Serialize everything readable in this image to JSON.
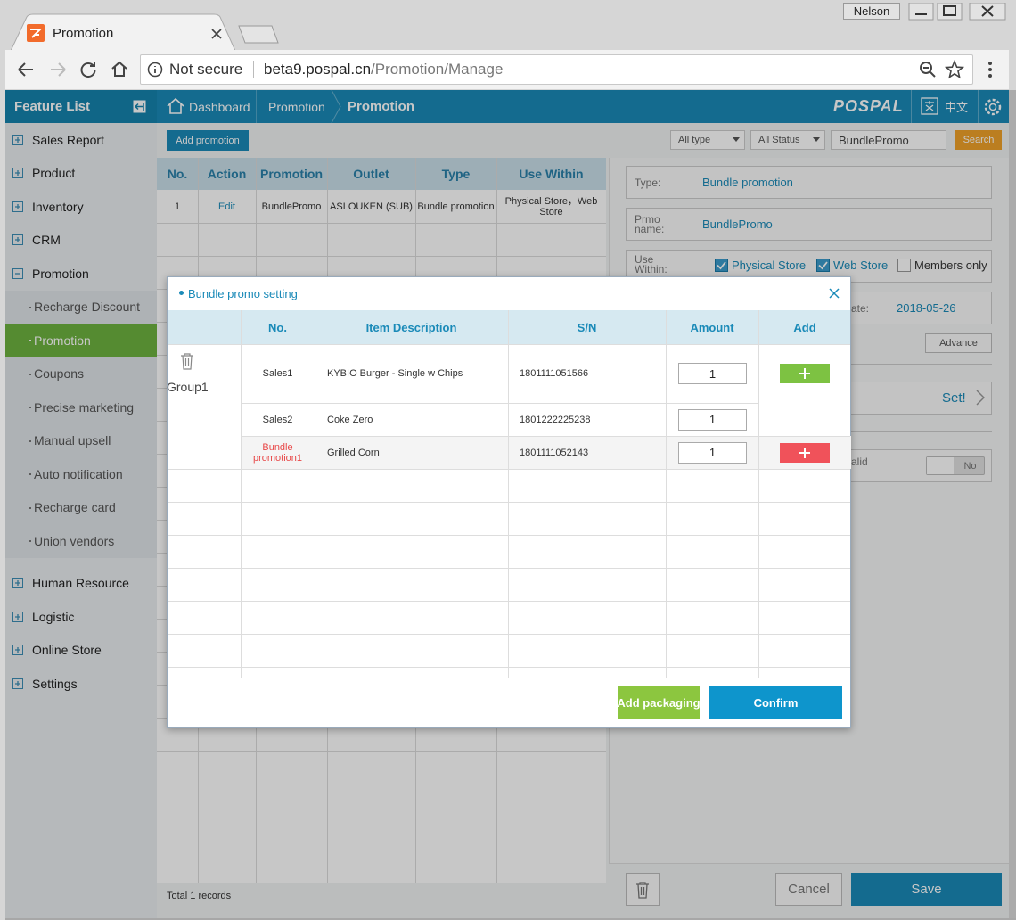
{
  "browser": {
    "tab_title": "Promotion",
    "user": "Nelson",
    "security_label": "Not secure",
    "url_host": "beta9.pospal.cn",
    "url_path": "/Promotion/Manage"
  },
  "sidebar": {
    "title": "Feature List",
    "items": [
      {
        "label": "Sales Report"
      },
      {
        "label": "Product"
      },
      {
        "label": "Inventory"
      },
      {
        "label": "CRM"
      },
      {
        "label": "Promotion",
        "expanded": true,
        "children": [
          "Recharge Discount",
          "Promotion",
          "Coupons",
          "Precise marketing",
          "Manual upsell",
          "Auto notification",
          "Recharge card",
          "Union vendors"
        ],
        "active_child": 1
      },
      {
        "label": "Human Resource"
      },
      {
        "label": "Logistic"
      },
      {
        "label": "Online Store"
      },
      {
        "label": "Settings"
      }
    ]
  },
  "breadcrumb": [
    "Dashboard",
    "Promotion",
    "Promotion"
  ],
  "header": {
    "logo": "POSPAL",
    "language": "中文"
  },
  "toolbar": {
    "add_button": "Add promotion",
    "type_filter": "All type",
    "status_filter": "All Status",
    "search_text": "BundlePromo",
    "search_button": "Search"
  },
  "table": {
    "columns": [
      "No.",
      "Action",
      "Promotion",
      "Outlet",
      "Type",
      "Use Within"
    ],
    "rows": [
      [
        1,
        "Edit",
        "BundlePromo",
        "ASLOUKEN (SUB)",
        "Bundle promotion",
        "Physical Store，Web Store"
      ]
    ],
    "footer": "Total 1 records"
  },
  "details": {
    "type_label": "Type:",
    "type_value": "Bundle promotion",
    "name_label": "Prmo name:",
    "name_value": "BundlePromo",
    "use_within_label": "Use Within:",
    "use_within_options": [
      {
        "label": "Physical Store",
        "checked": true
      },
      {
        "label": "Web Store",
        "checked": true
      },
      {
        "label": "Members only",
        "checked": false
      }
    ],
    "date_label": "ate:",
    "date_value": "2018-05-26",
    "advance_button": "Advance",
    "set_button": "Set!",
    "valid_label": "alid",
    "valid_toggle": "No",
    "cancel_button": "Cancel",
    "save_button": "Save"
  },
  "dialog": {
    "title": "Bundle promo setting",
    "columns": [
      "No.",
      "Item Description",
      "S/N",
      "Amount",
      "Add"
    ],
    "group": "Group1",
    "rows": [
      {
        "no": "Sales1",
        "item": "KYBIO Burger - Single w Chips",
        "sn": "1801111051566",
        "amount": 1
      },
      {
        "no": "Sales2",
        "item": "Coke Zero",
        "sn": "1801222225238",
        "amount": 1
      },
      {
        "no": "Bundle promotion1",
        "item": "Grilled Corn",
        "sn": "1801111052143",
        "amount": 1
      }
    ],
    "add_packaging_button": "Add packaging",
    "confirm_button": "Confirm"
  }
}
